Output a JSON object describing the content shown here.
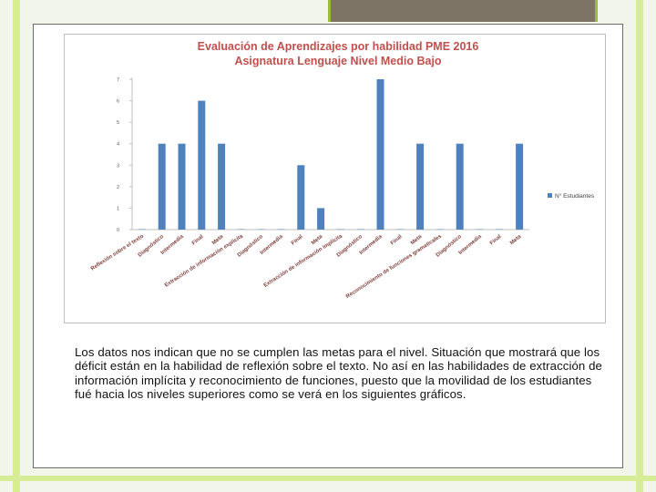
{
  "colors": {
    "bar": "#4f81bd",
    "title": "#c0504d",
    "background": "#f2f6ea",
    "accent": "#d6ec96",
    "topbar": "#7d7465"
  },
  "chart_data": {
    "type": "bar",
    "title": "Evaluación de Aprendizajes por habilidad PME 2016",
    "subtitle": "Asignatura Lenguaje Nivel Medio Bajo",
    "ylim": [
      0,
      7
    ],
    "yticks": [
      "0",
      "1",
      "2",
      "3",
      "4",
      "5",
      "6",
      "7"
    ],
    "legend": "right",
    "categories": [
      "Reflexión sobre el texto",
      "Diagnóstico",
      "Intermedia",
      "Final",
      "Meta",
      "Extracción de información explícita",
      "Diagnóstico",
      "Intermedia",
      "Final",
      "Meta",
      "Extracción de información implícita",
      "Diagnóstico",
      "Intermedia",
      "Final",
      "Meta",
      "Reconocimiento de funciones gramaticales",
      "Diagnóstico",
      "Intermedia",
      "Final",
      "Meta"
    ],
    "series": [
      {
        "name": "N° Estudiantes",
        "values": [
          0,
          4,
          4,
          6,
          4,
          0,
          0,
          0,
          3,
          1,
          0,
          0,
          7,
          0,
          4,
          0,
          4,
          0,
          0,
          4
        ]
      }
    ]
  },
  "paragraph": "Los datos nos indican que no se cumplen las metas para el nivel. Situación que mostrará que los déficit están en la habilidad de reflexión sobre el texto. No así en las habilidades de extracción de información implícita y reconocimiento de funciones, puesto que la movilidad de los estudiantes fué hacia los niveles superiores como se verá en los siguientes gráficos."
}
